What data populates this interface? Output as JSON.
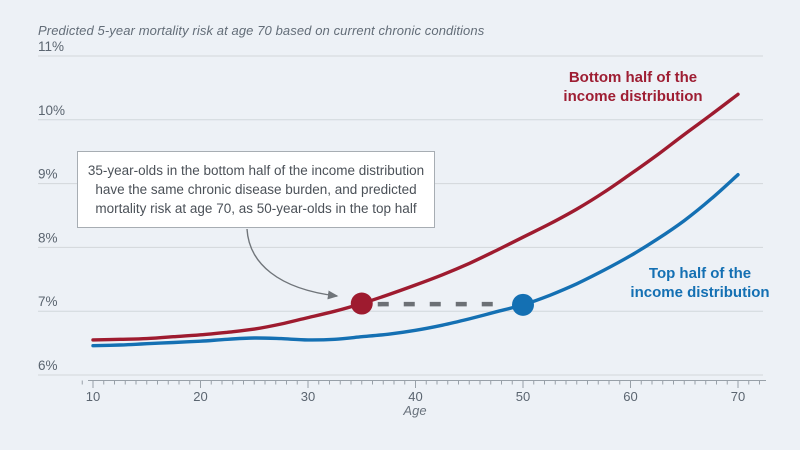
{
  "chart_data": {
    "type": "line",
    "title": "Predicted 5-year mortality risk at age 70 based on current chronic conditions",
    "xlabel": "Age",
    "ylabel": "",
    "xlim": [
      9,
      72
    ],
    "ylim": [
      6,
      11
    ],
    "grid": "horizontal",
    "legend_position": "inline-labels",
    "x": [
      10,
      12.5,
      15,
      17.5,
      20,
      22.5,
      25,
      27.5,
      30,
      32.5,
      35,
      37.5,
      40,
      42.5,
      45,
      47.5,
      50,
      52.5,
      55,
      57.5,
      60,
      62.5,
      65,
      67.5,
      70
    ],
    "series": [
      {
        "id": "bottom_half",
        "name": "Bottom half of the income distribution",
        "label_lines": [
          "Bottom half of the",
          "income distribution"
        ],
        "color": "#9e1b2f",
        "values": [
          6.55,
          6.56,
          6.57,
          6.6,
          6.63,
          6.67,
          6.72,
          6.8,
          6.9,
          7.0,
          7.12,
          7.26,
          7.41,
          7.57,
          7.75,
          7.95,
          8.16,
          8.37,
          8.6,
          8.86,
          9.15,
          9.45,
          9.77,
          10.08,
          10.4
        ]
      },
      {
        "id": "top_half",
        "name": "Top half of the income distribution",
        "label_lines": [
          "Top half of the",
          "income distribution"
        ],
        "color": "#1470b3",
        "values": [
          6.46,
          6.47,
          6.49,
          6.51,
          6.53,
          6.56,
          6.58,
          6.57,
          6.55,
          6.56,
          6.6,
          6.64,
          6.7,
          6.78,
          6.88,
          6.99,
          7.1,
          7.25,
          7.43,
          7.64,
          7.87,
          8.13,
          8.42,
          8.76,
          9.14
        ]
      }
    ],
    "y_ticks": [
      {
        "value": 6,
        "label": "6%"
      },
      {
        "value": 7,
        "label": "7%"
      },
      {
        "value": 8,
        "label": "8%"
      },
      {
        "value": 9,
        "label": "9%"
      },
      {
        "value": 10,
        "label": "10%"
      },
      {
        "value": 11,
        "label": "11%"
      }
    ],
    "x_ticks": [
      {
        "value": 10,
        "label": "10"
      },
      {
        "value": 20,
        "label": "20"
      },
      {
        "value": 30,
        "label": "30"
      },
      {
        "value": 40,
        "label": "40"
      },
      {
        "value": 50,
        "label": "50"
      },
      {
        "value": 60,
        "label": "60"
      },
      {
        "value": 70,
        "label": "70"
      }
    ],
    "markers": [
      {
        "series": "bottom_half",
        "x": 35,
        "y": 7.12,
        "color": "#9e1b2f"
      },
      {
        "series": "top_half",
        "x": 50,
        "y": 7.1,
        "color": "#1470b3"
      }
    ],
    "connector": {
      "x1": 35,
      "x2": 50,
      "y": 7.11,
      "style": "dashed",
      "color": "#6c7075"
    },
    "annotation": {
      "lines": [
        "35-year-olds in the bottom half of the income distribution",
        "have the same chronic disease burden, and predicted",
        "mortality risk at age 70, as 50-year-olds in the top half"
      ]
    }
  },
  "colors": {
    "background": "#edf1f6",
    "gridline": "#d2d7db",
    "axis": "#98a0a8",
    "tick_label": "#5b6570",
    "title_text": "#636d78",
    "annotation_text": "#4b5158",
    "annotation_border": "#a7adb3",
    "arrow": "#70757a"
  }
}
